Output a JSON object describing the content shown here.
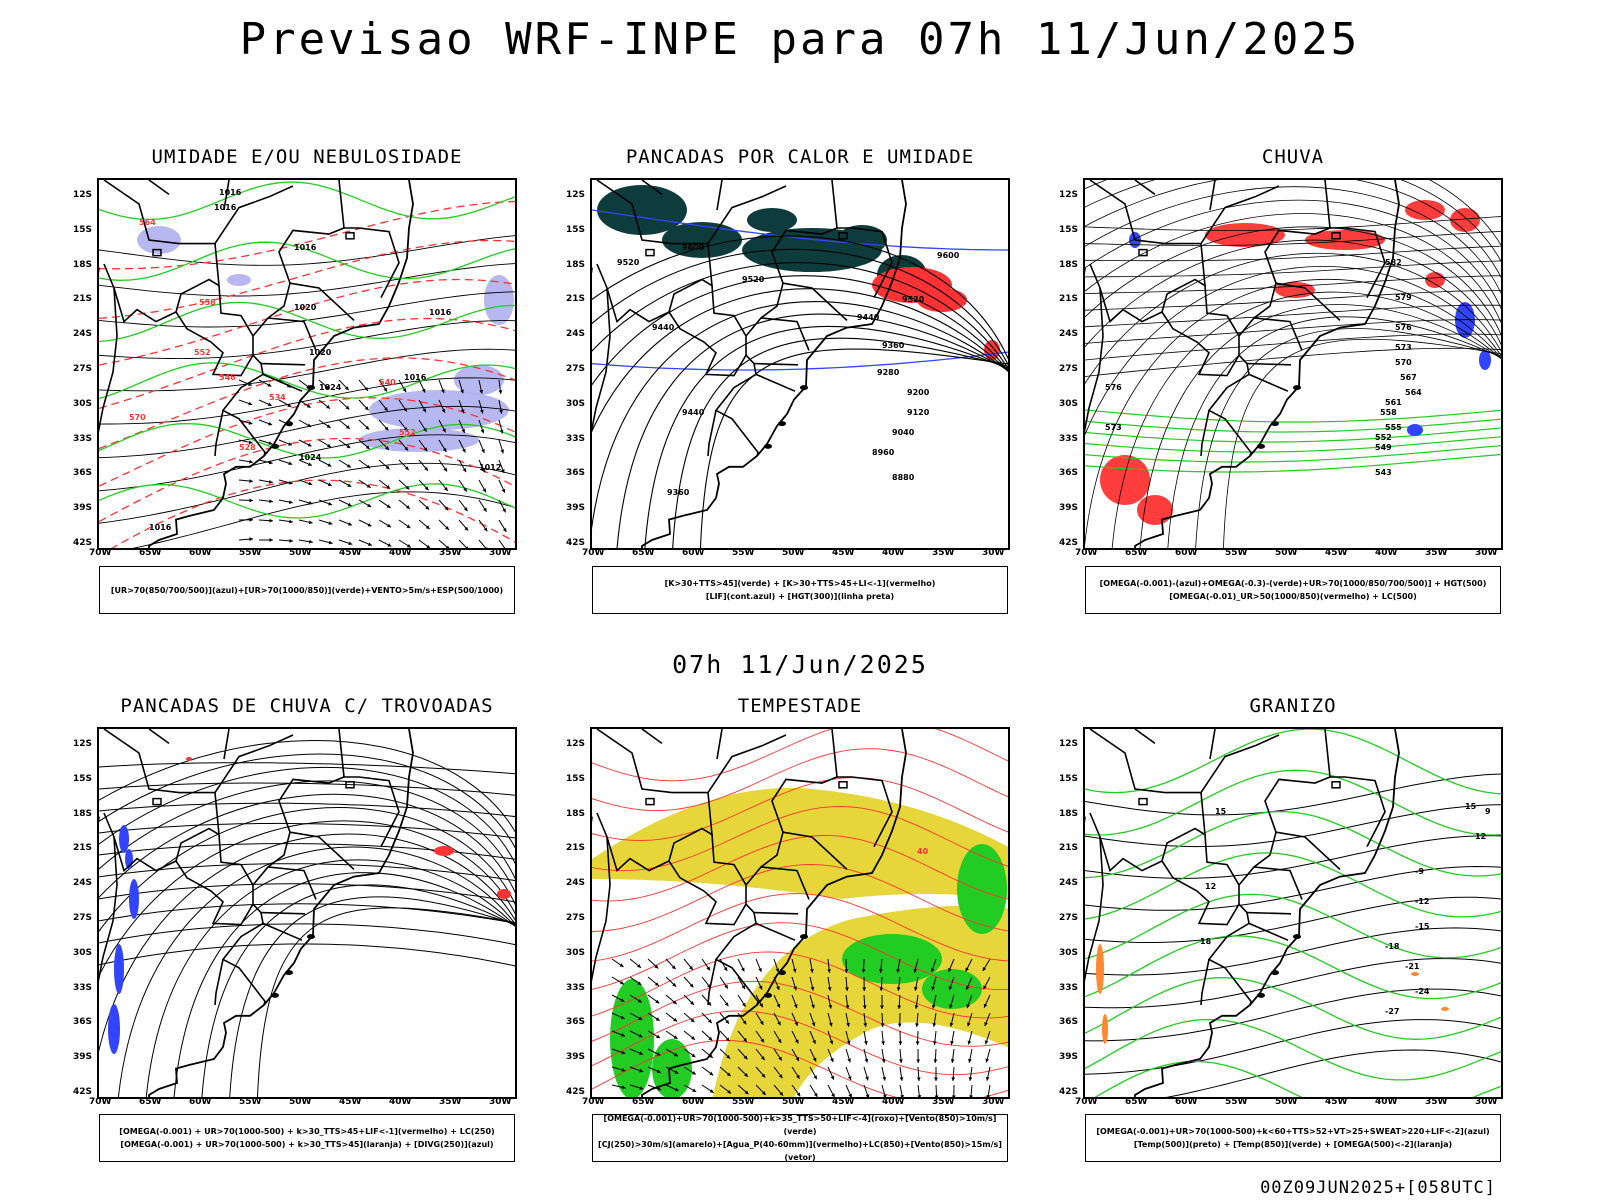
{
  "title": "Previsao WRF-INPE  para 07h 11/Jun/2025",
  "mid_title": "07h 11/Jun/2025",
  "footer": "00Z09JUN2025+[058UTC]",
  "axes": {
    "lat_labels": [
      "12S",
      "15S",
      "18S",
      "21S",
      "24S",
      "27S",
      "30S",
      "33S",
      "36S",
      "39S",
      "42S"
    ],
    "lon_labels": [
      "70W",
      "65W",
      "60W",
      "55W",
      "50W",
      "45W",
      "40W",
      "35W",
      "30W"
    ]
  },
  "colors": {
    "blue": "#3344ff",
    "green": "#22cc22",
    "red": "#ff3333",
    "darkteal": "#0e3c3c",
    "lavender": "#b0b0ee",
    "yellow": "#e6d63a",
    "orange": "#ff8833"
  },
  "panels": [
    {
      "title": "UMIDADE E/OU NEBULOSIDADE",
      "legend": [
        "[UR>70(850/700/500)](azul)+[UR>70(1000/850)](verde)+VENTO>5m/s+ESP(500/1000)"
      ],
      "contour_labels": [
        "1016",
        "1016",
        "1016",
        "1020",
        "1020",
        "1024",
        "1024",
        "1016",
        "1016",
        "1012",
        "1016",
        "570",
        "564",
        "558",
        "552",
        "546",
        "534",
        "540",
        "528",
        "552"
      ]
    },
    {
      "title": "PANCADAS POR CALOR E UMIDADE",
      "legend": [
        "[K>30+TTS>45](verde) + [K>30+TTS>45+LI<-1](vermelho)",
        "[LIF](cont.azul) + [HGT(300)](linha preta)"
      ],
      "contour_labels": [
        "9600",
        "9520",
        "9520",
        "9600",
        "9520",
        "9440",
        "9440",
        "9360",
        "9280",
        "9200",
        "9120",
        "9040",
        "8960",
        "8880",
        "9440",
        "9360"
      ]
    },
    {
      "title": "CHUVA",
      "legend": [
        "[OMEGA(-0.001)-(azul)+OMEGA(-0.3)-(verde)+UR>70(1000/850/700/500)] + HGT(500)",
        "[OMEGA(-0.01)_UR>50(1000/850)(vermelho) + LC(500)"
      ],
      "contour_labels": [
        "582",
        "579",
        "576",
        "573",
        "570",
        "567",
        "564",
        "561",
        "558",
        "555",
        "552",
        "549",
        "543",
        "576",
        "573"
      ]
    },
    {
      "title": "PANCADAS DE CHUVA C/ TROVOADAS",
      "legend": [
        "[OMEGA(-0.001) + UR>70(1000-500) + k>30_TTS>45+LIF<-1](vermelho) + LC(250)",
        "[OMEGA(-0.001) + UR>70(1000-500) + k>30_TTS>45](laranja) + [DIVG(250)](azul)"
      ],
      "contour_labels": []
    },
    {
      "title": "TEMPESTADE",
      "legend": [
        "[OMEGA(-0.001)+UR>70(1000-500)+k>35_TTS>50+LIF<-4](roxo)+[Vento(850)>10m/s](verde)",
        "[CJ(250)>30m/s](amarelo)+[Agua_P(40-60mm)](vermelho)+LC(850)+[Vento(850)>15m/s](vetor)"
      ],
      "contour_labels": [
        "40"
      ]
    },
    {
      "title": "GRANIZO",
      "legend": [
        "[OMEGA(-0.001)+UR>70(1000-500)+k<60+TTS>52+VT>25+SWEAT>220+LIF<-2](azul)",
        "[Temp(500)](preto) + [Temp(850)](verde) + [OMEGA(500)<-2](laranja)"
      ],
      "contour_labels": [
        "-9",
        "-12",
        "-15",
        "-18",
        "-21",
        "-24",
        "-27",
        "15",
        "12",
        "18",
        "15",
        "12",
        "9"
      ]
    }
  ]
}
